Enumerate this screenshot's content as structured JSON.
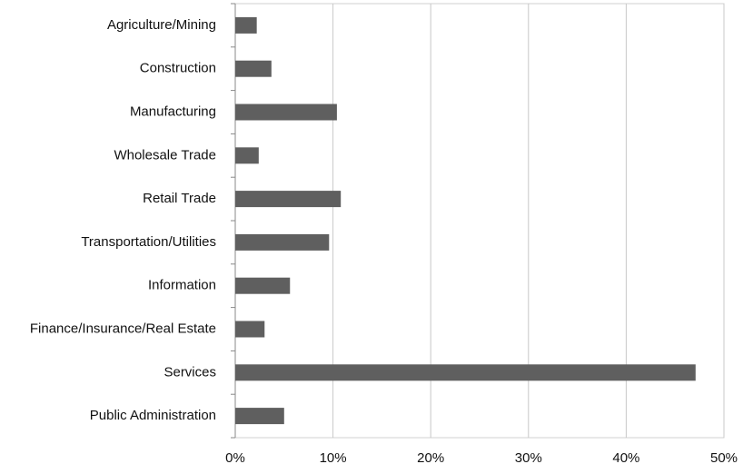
{
  "chart_data": {
    "type": "hbar",
    "categories": [
      "Agriculture/Mining",
      "Construction",
      "Manufacturing",
      "Wholesale Trade",
      "Retail Trade",
      "Transportation/Utilities",
      "Information",
      "Finance/Insurance/Real Estate",
      "Services",
      "Public Administration"
    ],
    "values": [
      2.2,
      3.7,
      10.4,
      2.4,
      10.8,
      9.6,
      5.6,
      3.0,
      47.1,
      5.0
    ],
    "color": "#5f5f5f",
    "xlim": [
      0,
      50
    ],
    "xticks": [
      {
        "value": 0,
        "label": "0%"
      },
      {
        "value": 10,
        "label": "10%"
      },
      {
        "value": 20,
        "label": "20%"
      },
      {
        "value": 30,
        "label": "30%"
      },
      {
        "value": 40,
        "label": "40%"
      },
      {
        "value": 50,
        "label": "50%"
      }
    ],
    "grid": true
  }
}
